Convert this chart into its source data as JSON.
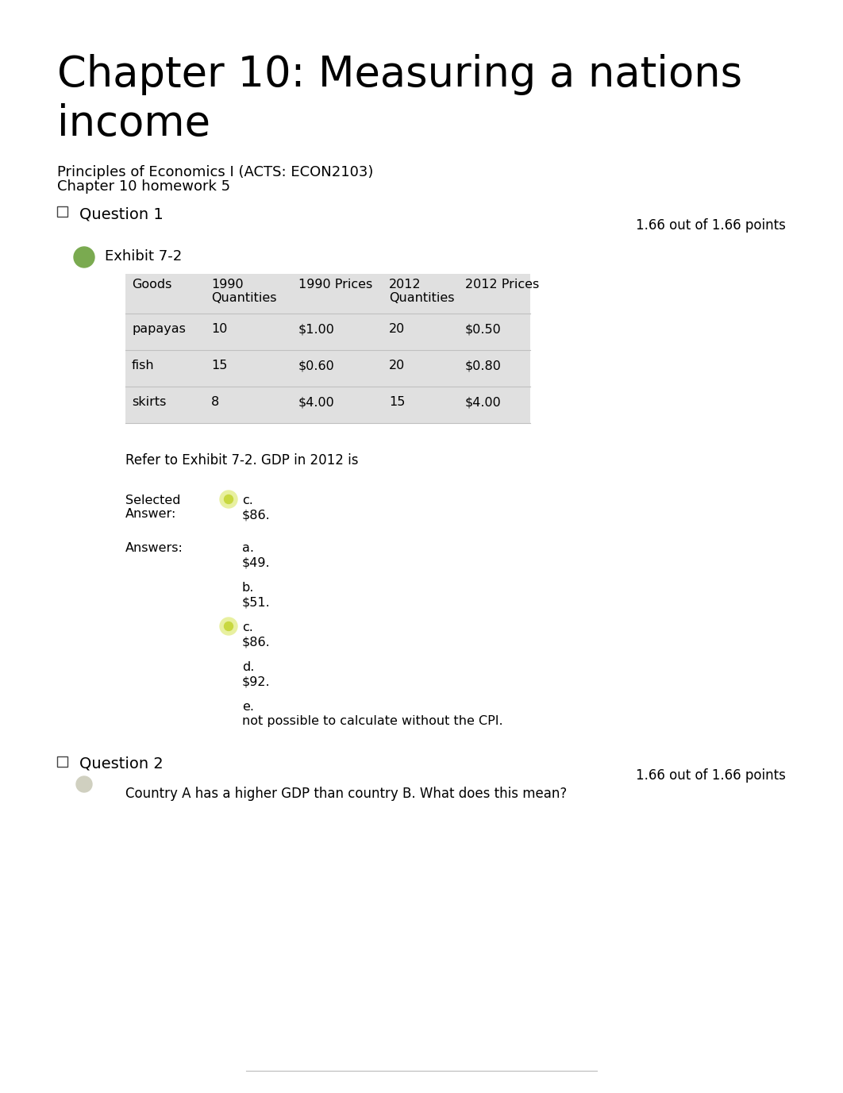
{
  "title_line1": "Chapter 10: Measuring a nations",
  "title_line2": "income",
  "subtitle1": "Principles of Economics I (ACTS: ECON2103)",
  "subtitle2": "Chapter 10 homework 5",
  "background_color": "#ffffff",
  "title_fontsize": 38,
  "subtitle_fontsize": 13,
  "question1_label": "Question 1",
  "question1_points": "1.66 out of 1.66 points",
  "exhibit_label": "Exhibit 7-2",
  "table_headers": [
    "Goods",
    "1990\nQuantities",
    "1990 Prices",
    "2012\nQuantities",
    "2012 Prices"
  ],
  "table_rows": [
    [
      "papayas",
      "10",
      "$1.00",
      "20",
      "$0.50"
    ],
    [
      "fish",
      "15",
      "$0.60",
      "20",
      "$0.80"
    ],
    [
      "skirts",
      "8",
      "$4.00",
      "15",
      "$4.00"
    ]
  ],
  "refer_text": "Refer to Exhibit 7-2. GDP in 2012 is",
  "selected_answer_label": "Selected\nAnswer:",
  "selected_answer_letter": "c.",
  "selected_answer_value": "$86.",
  "answers_label": "Answers:",
  "answer_letters": [
    "a.",
    "b.",
    "c.",
    "d.",
    "e."
  ],
  "answer_values": [
    "$49.",
    "$51.",
    "$86.",
    "$92.",
    "not possible to calculate without the CPI."
  ],
  "highlighted_idx": 2,
  "question2_label": "Question 2",
  "question2_points": "1.66 out of 1.66 points",
  "question2_text": "Country A has a higher GDP than country B. What does this mean?",
  "green_blob_color": "#7aaa50",
  "highlight_color": "#e8f0a0",
  "highlight_dot": "#c8d840",
  "table_bg_color": "#e0e0e0",
  "sep_line_color": "#c0c0c0",
  "footer_line_color": "#bbbbbb",
  "q2_blob_color": "#d0d0c0"
}
